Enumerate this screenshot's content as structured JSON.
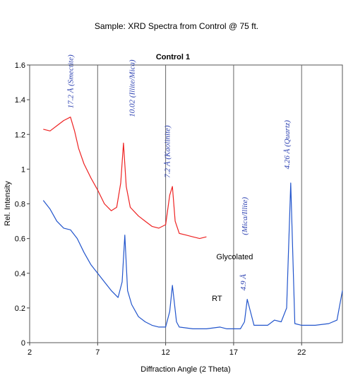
{
  "chart_data": {
    "type": "line",
    "title": "Sample: XRD Spectra from Control @ 75 ft.",
    "subtitle": "Control  1",
    "xlabel": "Diffraction Angle (2 Theta)",
    "ylabel": "Rel. Intensity",
    "xlim": [
      2,
      25
    ],
    "ylim": [
      0,
      1.6
    ],
    "x_ticks": [
      2,
      7,
      12,
      17,
      22
    ],
    "y_ticks": [
      0,
      0.2,
      0.4,
      0.6,
      0.8,
      1,
      1.2,
      1.4,
      1.6
    ],
    "x_tick_labels": [
      "2",
      "7",
      "12",
      "17",
      "22"
    ],
    "y_tick_labels": [
      "0",
      "0.2",
      "0.4",
      "0.6",
      "0.8",
      "1",
      "1.2",
      "1.4",
      "1.6"
    ],
    "grid": "vertical",
    "series": [
      {
        "name": "Glycolated",
        "color": "#ee2222",
        "x": [
          3,
          3.5,
          4,
          4.5,
          5,
          5.3,
          5.6,
          6,
          6.5,
          7,
          7.5,
          8,
          8.4,
          8.7,
          8.9,
          9.1,
          9.4,
          10,
          10.5,
          11,
          11.5,
          12,
          12.3,
          12.5,
          12.7,
          13,
          13.5,
          14,
          14.5,
          15
        ],
        "y": [
          1.23,
          1.22,
          1.25,
          1.28,
          1.3,
          1.22,
          1.12,
          1.03,
          0.95,
          0.88,
          0.8,
          0.76,
          0.78,
          0.92,
          1.15,
          0.9,
          0.78,
          0.73,
          0.7,
          0.67,
          0.66,
          0.68,
          0.85,
          0.9,
          0.7,
          0.63,
          0.62,
          0.61,
          0.6,
          0.61
        ]
      },
      {
        "name": "RT",
        "color": "#2255cc",
        "x": [
          3,
          3.5,
          4,
          4.5,
          5,
          5.5,
          6,
          6.5,
          7,
          7.5,
          8,
          8.5,
          8.8,
          9,
          9.2,
          9.5,
          10,
          10.5,
          11,
          11.5,
          12,
          12.3,
          12.5,
          12.8,
          13,
          14,
          15,
          16,
          16.5,
          17,
          17.5,
          17.8,
          18,
          18.5,
          19,
          19.5,
          20,
          20.5,
          20.9,
          21.2,
          21.5,
          22,
          23,
          24,
          24.6,
          25
        ],
        "y": [
          0.82,
          0.77,
          0.7,
          0.66,
          0.65,
          0.6,
          0.52,
          0.45,
          0.4,
          0.35,
          0.3,
          0.26,
          0.35,
          0.62,
          0.3,
          0.22,
          0.15,
          0.12,
          0.1,
          0.09,
          0.09,
          0.18,
          0.33,
          0.12,
          0.09,
          0.08,
          0.08,
          0.09,
          0.08,
          0.08,
          0.08,
          0.12,
          0.25,
          0.1,
          0.1,
          0.1,
          0.13,
          0.12,
          0.2,
          0.92,
          0.11,
          0.1,
          0.1,
          0.11,
          0.13,
          0.3
        ]
      }
    ],
    "annotations": [
      {
        "text": "17.2 Å (Smectite)",
        "x": 5.2,
        "y": 1.35
      },
      {
        "text": "10.02 (Illite/Mica)",
        "x": 9.7,
        "y": 1.3
      },
      {
        "text": "7.2 Å (Kaolinite)",
        "x": 12.3,
        "y": 0.95
      },
      {
        "text": "4.9 Å",
        "x": 17.9,
        "y": 0.3
      },
      {
        "text": "(Mica/Illite)",
        "x": 18.0,
        "y": 0.62
      },
      {
        "text": "4.26 Å (Quartz)",
        "x": 21.1,
        "y": 1.0
      }
    ]
  }
}
